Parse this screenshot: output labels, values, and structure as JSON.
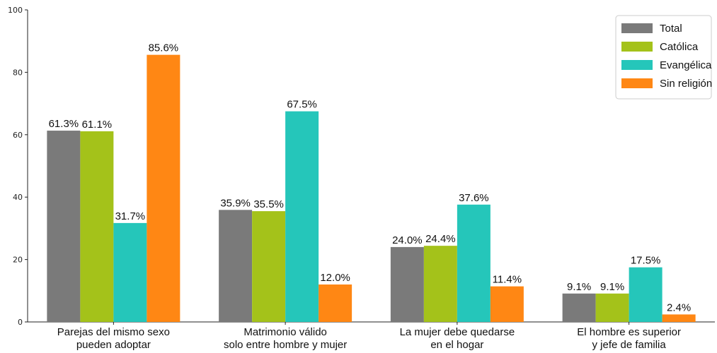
{
  "chart_data": {
    "type": "bar",
    "categories": [
      [
        "Parejas del mismo sexo",
        "pueden adoptar"
      ],
      [
        "Matrimonio válido",
        "solo entre hombre y mujer"
      ],
      [
        "La mujer debe quedarse",
        "en el hogar"
      ],
      [
        "El hombre es superior",
        "y jefe de familia"
      ]
    ],
    "series": [
      {
        "name": "Total",
        "color": "#7a7a7a",
        "values": [
          61.3,
          35.9,
          24.0,
          9.1
        ]
      },
      {
        "name": "Católica",
        "color": "#a4c21a",
        "values": [
          61.1,
          35.5,
          24.4,
          9.1
        ]
      },
      {
        "name": "Evangélica",
        "color": "#25c6ba",
        "values": [
          31.7,
          67.5,
          37.6,
          17.5
        ]
      },
      {
        "name": "Sin religión",
        "color": "#ff8714",
        "values": [
          85.6,
          12.0,
          11.4,
          2.4
        ]
      }
    ],
    "value_suffix": "%",
    "ylim": [
      0,
      100
    ],
    "yticks": [
      0,
      20,
      40,
      60,
      80,
      100
    ],
    "grid": false,
    "legend_position": "top-right",
    "title": "",
    "xlabel": "",
    "ylabel": ""
  }
}
